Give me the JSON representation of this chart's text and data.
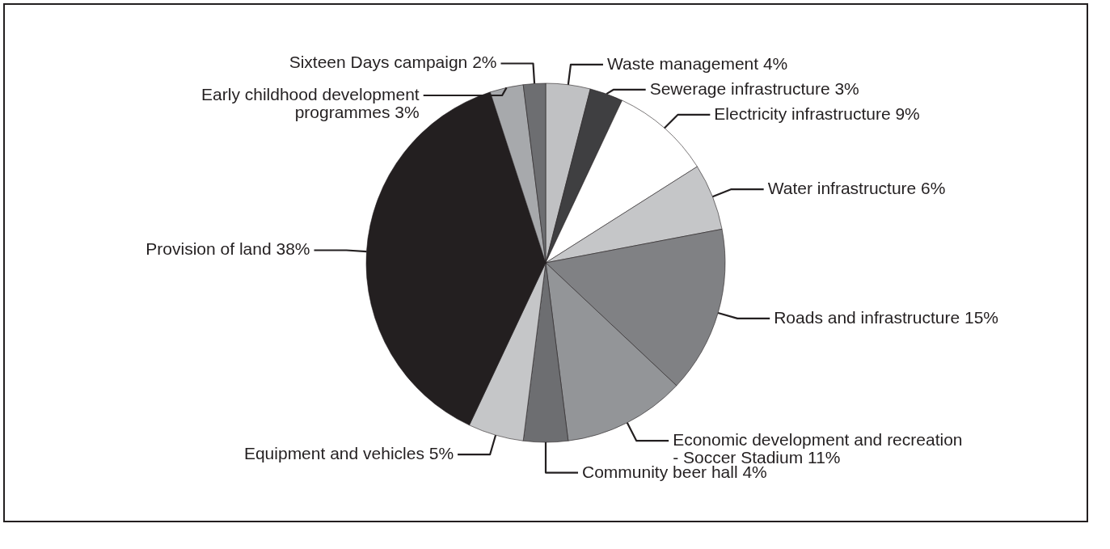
{
  "chart_data": {
    "type": "pie",
    "categories": [
      "Waste management",
      "Sewerage infrastructure",
      "Electricity infrastructure",
      "Water infrastructure",
      "Roads and infrastructure",
      "Economic development and recreation - Soccer Stadium",
      "Community beer hall",
      "Equipment and vehicles",
      "Provision of land",
      "Early childhood development programmes",
      "Sixteen Days campaign"
    ],
    "values": [
      4,
      3,
      9,
      6,
      15,
      11,
      4,
      5,
      38,
      3,
      2
    ],
    "value_labels": [
      "4%",
      "3%",
      "9%",
      "6%",
      "15%",
      "11%",
      "4%",
      "5%",
      "38%",
      "3%",
      "2%"
    ],
    "colors": [
      "#c0c1c3",
      "#3f3f41",
      "#ffffff",
      "#c5c6c8",
      "#808184",
      "#939598",
      "#6d6e71",
      "#c5c6c8",
      "#231f20",
      "#a7a9ac",
      "#6d6e71"
    ]
  }
}
